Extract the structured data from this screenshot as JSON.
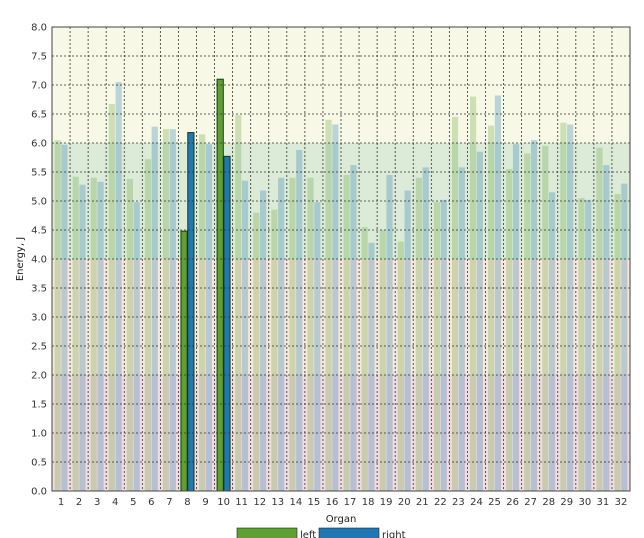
{
  "chart_data": {
    "type": "bar",
    "xlabel": "Organ",
    "ylabel": "Energy, J",
    "ylim": [
      0,
      8
    ],
    "yticks": [
      "0.0",
      "0.5",
      "1.0",
      "1.5",
      "2.0",
      "2.5",
      "3.0",
      "3.5",
      "4.0",
      "4.5",
      "5.0",
      "5.5",
      "6.0",
      "6.5",
      "7.0",
      "7.5",
      "8.0"
    ],
    "categories": [
      "1",
      "2",
      "3",
      "4",
      "5",
      "6",
      "7",
      "8",
      "9",
      "10",
      "11",
      "12",
      "13",
      "14",
      "15",
      "16",
      "17",
      "18",
      "19",
      "20",
      "21",
      "22",
      "23",
      "24",
      "25",
      "26",
      "27",
      "28",
      "29",
      "30",
      "31",
      "32"
    ],
    "highlighted_categories": [
      "8",
      "10"
    ],
    "grid": true,
    "legend_position": "bottom",
    "background_bands": [
      {
        "from": 0,
        "to": 2,
        "color": "#f1dcdf"
      },
      {
        "from": 2,
        "to": 4,
        "color": "#f6e8dc"
      },
      {
        "from": 4,
        "to": 6,
        "color": "#dcebd8"
      },
      {
        "from": 6,
        "to": 8,
        "color": "#f7f8e6"
      }
    ],
    "series": [
      {
        "name": "left",
        "color": "#5fa032",
        "values": [
          6.05,
          5.42,
          5.4,
          6.67,
          5.38,
          5.72,
          6.24,
          4.48,
          6.15,
          7.1,
          6.48,
          4.8,
          4.85,
          5.4,
          5.4,
          6.4,
          5.45,
          4.55,
          4.5,
          4.3,
          5.4,
          4.98,
          6.45,
          6.8,
          6.3,
          5.55,
          5.82,
          5.95,
          6.35,
          5.05,
          5.92,
          5.12
        ]
      },
      {
        "name": "right",
        "color": "#1f78b4",
        "values": [
          5.97,
          5.28,
          5.33,
          7.05,
          4.98,
          6.28,
          6.24,
          6.18,
          5.98,
          5.77,
          5.35,
          5.18,
          5.4,
          5.88,
          4.98,
          6.32,
          5.62,
          4.28,
          5.45,
          5.18,
          5.58,
          5.02,
          5.58,
          5.85,
          6.82,
          5.98,
          6.05,
          5.15,
          6.32,
          5.02,
          5.62,
          5.3
        ]
      }
    ]
  }
}
